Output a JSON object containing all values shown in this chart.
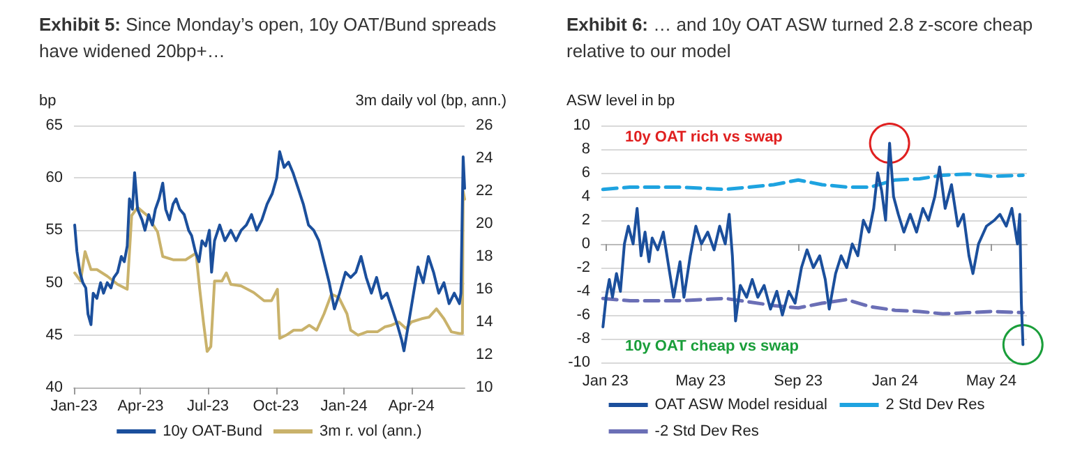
{
  "chart_data": [
    {
      "type": "line",
      "title": "Exhibit 5:  Since Monday’s open, 10y OAT/Bund spreads have widened 20bp+…",
      "ylabel": "bp",
      "y2label": "3m daily vol (bp, ann.)",
      "xlim": [
        "2023-01-01",
        "2024-06-12"
      ],
      "xticks": [
        {
          "value": "2023-01-01",
          "label": "Jan-23"
        },
        {
          "value": "2023-04-01",
          "label": "Apr-23"
        },
        {
          "value": "2023-07-01",
          "label": "Jul-23"
        },
        {
          "value": "2023-10-01",
          "label": "Oct-23"
        },
        {
          "value": "2024-01-01",
          "label": "Jan-24"
        },
        {
          "value": "2024-04-01",
          "label": "Apr-24"
        }
      ],
      "ylim": [
        40,
        65
      ],
      "yticks": [
        40,
        45,
        50,
        55,
        60,
        65
      ],
      "y2lim": [
        10,
        26
      ],
      "y2ticks": [
        10,
        12,
        14,
        16,
        18,
        20,
        22,
        24,
        26
      ],
      "grid": "y",
      "legend": "bottom",
      "series": [
        {
          "name": "10y OAT-Bund",
          "color": "#1b4f9c",
          "x": [
            "2023-01-02",
            "2023-01-05",
            "2023-01-09",
            "2023-01-13",
            "2023-01-17",
            "2023-01-20",
            "2023-01-24",
            "2023-01-27",
            "2023-02-01",
            "2023-02-06",
            "2023-02-10",
            "2023-02-15",
            "2023-02-20",
            "2023-02-24",
            "2023-03-01",
            "2023-03-06",
            "2023-03-10",
            "2023-03-14",
            "2023-03-17",
            "2023-03-21",
            "2023-03-24",
            "2023-03-28",
            "2023-04-03",
            "2023-04-07",
            "2023-04-12",
            "2023-04-17",
            "2023-04-21",
            "2023-04-26",
            "2023-05-01",
            "2023-05-05",
            "2023-05-10",
            "2023-05-15",
            "2023-05-19",
            "2023-05-24",
            "2023-05-30",
            "2023-06-05",
            "2023-06-09",
            "2023-06-14",
            "2023-06-19",
            "2023-06-23",
            "2023-06-28",
            "2023-07-03",
            "2023-07-06",
            "2023-07-10",
            "2023-07-17",
            "2023-07-24",
            "2023-08-01",
            "2023-08-08",
            "2023-08-15",
            "2023-08-22",
            "2023-08-29",
            "2023-09-05",
            "2023-09-12",
            "2023-09-19",
            "2023-09-26",
            "2023-10-02",
            "2023-10-06",
            "2023-10-12",
            "2023-10-18",
            "2023-10-24",
            "2023-10-31",
            "2023-11-07",
            "2023-11-14",
            "2023-11-21",
            "2023-11-28",
            "2023-12-05",
            "2023-12-12",
            "2023-12-19",
            "2023-12-26",
            "2024-01-03",
            "2024-01-10",
            "2024-01-17",
            "2024-01-24",
            "2024-01-31",
            "2024-02-07",
            "2024-02-14",
            "2024-02-21",
            "2024-02-28",
            "2024-03-06",
            "2024-03-13",
            "2024-03-19",
            "2024-03-22",
            "2024-03-28",
            "2024-04-04",
            "2024-04-10",
            "2024-04-17",
            "2024-04-24",
            "2024-05-01",
            "2024-05-08",
            "2024-05-15",
            "2024-05-22",
            "2024-05-29",
            "2024-06-05",
            "2024-06-07",
            "2024-06-10",
            "2024-06-12"
          ],
          "values": [
            55.5,
            53,
            51,
            50,
            49.5,
            47,
            46,
            49,
            48.5,
            50,
            49,
            50,
            49.5,
            50.5,
            51,
            52.5,
            52,
            53.5,
            58,
            57,
            60.5,
            57,
            56,
            55,
            56.5,
            55.5,
            57,
            58,
            59.5,
            57,
            56,
            57.5,
            58,
            57,
            56.5,
            55,
            54.5,
            53,
            52,
            54,
            53.5,
            55,
            51,
            54,
            55.5,
            54,
            55,
            54,
            55,
            55.5,
            56.5,
            55,
            56,
            57.5,
            58.5,
            60,
            62.5,
            61,
            61.5,
            60.5,
            59,
            57.5,
            55.5,
            55,
            54,
            52,
            50,
            47.5,
            49,
            51,
            50.5,
            51,
            52.5,
            50.5,
            49,
            50.5,
            48.5,
            49,
            47.5,
            46,
            44.5,
            43.5,
            46,
            49,
            51.5,
            50,
            52.5,
            51,
            49,
            50,
            48,
            49,
            48,
            49,
            62,
            59
          ]
        },
        {
          "name": "3m r. vol (ann.)",
          "color": "#c9b26b",
          "axis": "y2",
          "x": [
            "2023-01-02",
            "2023-01-10",
            "2023-01-16",
            "2023-01-24",
            "2023-02-01",
            "2023-02-15",
            "2023-03-01",
            "2023-03-14",
            "2023-03-20",
            "2023-03-28",
            "2023-04-10",
            "2023-04-24",
            "2023-05-01",
            "2023-05-15",
            "2023-06-01",
            "2023-06-15",
            "2023-06-20",
            "2023-06-25",
            "2023-06-30",
            "2023-07-05",
            "2023-07-10",
            "2023-07-20",
            "2023-07-26",
            "2023-08-01",
            "2023-08-15",
            "2023-09-01",
            "2023-09-15",
            "2023-09-25",
            "2023-10-03",
            "2023-10-06",
            "2023-10-15",
            "2023-10-25",
            "2023-11-05",
            "2023-11-15",
            "2023-11-25",
            "2023-12-05",
            "2023-12-15",
            "2023-12-25",
            "2024-01-05",
            "2024-01-10",
            "2024-01-20",
            "2024-02-01",
            "2024-02-15",
            "2024-02-25",
            "2024-03-05",
            "2024-03-15",
            "2024-03-25",
            "2024-04-01",
            "2024-04-15",
            "2024-04-25",
            "2024-05-05",
            "2024-05-15",
            "2024-05-25",
            "2024-06-05",
            "2024-06-09",
            "2024-06-10",
            "2024-06-12"
          ],
          "values": [
            17,
            16.5,
            18.3,
            17.2,
            17.2,
            16.8,
            16.3,
            16,
            20.5,
            21,
            20.5,
            19.5,
            18,
            17.8,
            17.8,
            18.2,
            16,
            14,
            12.2,
            12.5,
            16.5,
            16.5,
            17,
            16.3,
            16.2,
            15.8,
            15.3,
            15.3,
            16,
            13,
            13.2,
            13.5,
            13.5,
            13.8,
            13.5,
            14.5,
            15.7,
            15.5,
            14.5,
            13.5,
            13.2,
            13.4,
            13.4,
            13.7,
            13.8,
            14,
            13.6,
            14,
            14.2,
            14.3,
            14.8,
            14.2,
            13.4,
            13.3,
            13.3,
            22,
            21.5
          ]
        }
      ]
    },
    {
      "type": "line",
      "title": "Exhibit 6:  … and 10y OAT ASW turned 2.8 z-score cheap relative to our model",
      "ylabel": "ASW level in bp",
      "xlim": [
        "2022-12-27",
        "2024-06-15"
      ],
      "xticks": [
        {
          "value": "2023-01-01",
          "label": "Jan 23"
        },
        {
          "value": "2023-05-01",
          "label": "May 23"
        },
        {
          "value": "2023-09-01",
          "label": "Sep 23"
        },
        {
          "value": "2024-01-01",
          "label": "Jan 24"
        },
        {
          "value": "2024-05-01",
          "label": "May 24"
        }
      ],
      "ylim": [
        -10,
        10
      ],
      "yticks": [
        -10,
        -8,
        -6,
        -4,
        -2,
        0,
        2,
        4,
        6,
        8,
        10
      ],
      "grid": "y",
      "legend": "bottom",
      "annotations": [
        "10y OAT rich vs swap",
        "10y OAT cheap vs swap"
      ],
      "series": [
        {
          "name": "OAT ASW Model residual",
          "color": "#1b4f9c",
          "x": [
            "2022-12-29",
            "2023-01-02",
            "2023-01-06",
            "2023-01-10",
            "2023-01-15",
            "2023-01-20",
            "2023-01-25",
            "2023-01-30",
            "2023-02-05",
            "2023-02-10",
            "2023-02-15",
            "2023-02-20",
            "2023-02-25",
            "2023-03-01",
            "2023-03-08",
            "2023-03-15",
            "2023-03-22",
            "2023-03-28",
            "2023-04-05",
            "2023-04-10",
            "2023-04-18",
            "2023-04-25",
            "2023-05-02",
            "2023-05-10",
            "2023-05-18",
            "2023-05-25",
            "2023-06-01",
            "2023-06-06",
            "2023-06-10",
            "2023-06-14",
            "2023-06-20",
            "2023-06-28",
            "2023-07-05",
            "2023-07-12",
            "2023-07-20",
            "2023-07-28",
            "2023-08-05",
            "2023-08-12",
            "2023-08-20",
            "2023-08-28",
            "2023-09-05",
            "2023-09-12",
            "2023-09-20",
            "2023-09-28",
            "2023-10-05",
            "2023-10-10",
            "2023-10-18",
            "2023-10-25",
            "2023-11-01",
            "2023-11-08",
            "2023-11-15",
            "2023-11-22",
            "2023-11-29",
            "2023-12-05",
            "2023-12-10",
            "2023-12-15",
            "2023-12-20",
            "2023-12-25",
            "2023-12-30",
            "2024-01-05",
            "2024-01-12",
            "2024-01-20",
            "2024-01-28",
            "2024-02-05",
            "2024-02-12",
            "2024-02-20",
            "2024-02-26",
            "2024-03-04",
            "2024-03-12",
            "2024-03-20",
            "2024-03-27",
            "2024-04-03",
            "2024-04-08",
            "2024-04-15",
            "2024-04-25",
            "2024-05-05",
            "2024-05-12",
            "2024-05-20",
            "2024-05-27",
            "2024-06-03",
            "2024-06-06",
            "2024-06-08",
            "2024-06-10"
          ],
          "values": [
            -7,
            -4.5,
            -3,
            -4.5,
            -2.5,
            -4,
            0,
            1.5,
            0,
            3,
            -1,
            1,
            -1.5,
            0.5,
            -0.5,
            1,
            -2,
            -4.5,
            -1.5,
            -4.5,
            -1,
            1.5,
            0,
            1,
            -0.5,
            1.5,
            0,
            2.5,
            -1,
            -6.5,
            -3.5,
            -4.5,
            -3,
            -4.5,
            -3.5,
            -5.5,
            -4,
            -6,
            -4,
            -5,
            -2,
            -0.5,
            -2,
            -1,
            -3,
            -5.5,
            -2.5,
            -1,
            -2,
            0,
            -1,
            2,
            1,
            3,
            6,
            4.5,
            2,
            8.5,
            4,
            2.5,
            1,
            2.5,
            1,
            3,
            2,
            4,
            6.5,
            3,
            5,
            1.5,
            2.5,
            -1,
            -2.5,
            0,
            1.5,
            2,
            2.5,
            1.5,
            3,
            0,
            2.5,
            -5,
            -8.5
          ]
        },
        {
          "name": "2 Std Dev Res",
          "color": "#1ea3e0",
          "line_style": "dashed",
          "x": [
            "2022-12-29",
            "2023-02-01",
            "2023-04-01",
            "2023-06-01",
            "2023-08-01",
            "2023-09-01",
            "2023-10-01",
            "2023-11-01",
            "2023-12-01",
            "2024-01-01",
            "2024-02-01",
            "2024-03-01",
            "2024-04-01",
            "2024-05-01",
            "2024-06-10"
          ],
          "values": [
            4.6,
            4.8,
            4.8,
            4.6,
            5,
            5.4,
            5,
            4.8,
            4.8,
            5.4,
            5.5,
            5.8,
            5.9,
            5.7,
            5.8
          ]
        },
        {
          "name": "-2 Std Dev Res",
          "color": "#6b6fb6",
          "line_style": "dashed",
          "x": [
            "2022-12-29",
            "2023-02-01",
            "2023-04-01",
            "2023-06-01",
            "2023-08-01",
            "2023-09-01",
            "2023-10-01",
            "2023-11-01",
            "2023-12-01",
            "2024-01-01",
            "2024-02-01",
            "2024-03-01",
            "2024-04-01",
            "2024-05-01",
            "2024-06-10"
          ],
          "values": [
            -4.6,
            -4.8,
            -4.8,
            -4.6,
            -5.2,
            -5.4,
            -5,
            -4.7,
            -5.3,
            -5.6,
            -5.7,
            -5.9,
            -5.8,
            -5.7,
            -5.8
          ]
        }
      ]
    }
  ]
}
